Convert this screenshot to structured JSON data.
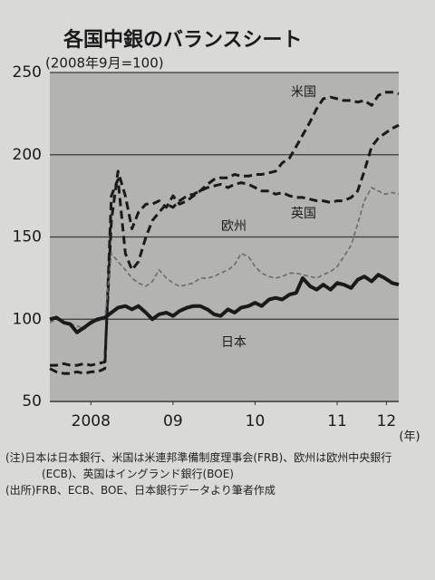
{
  "chart_data": {
    "type": "line",
    "title": "各国中銀のバランスシート",
    "subtitle": "(2008年9月=100)",
    "x_unit": "(年)",
    "x": [
      2008.0,
      2008.08,
      2008.17,
      2008.25,
      2008.33,
      2008.42,
      2008.5,
      2008.58,
      2008.67,
      2008.75,
      2008.83,
      2008.92,
      2009.0,
      2009.08,
      2009.17,
      2009.25,
      2009.33,
      2009.42,
      2009.5,
      2009.58,
      2009.67,
      2009.75,
      2009.83,
      2009.92,
      2010.0,
      2010.08,
      2010.17,
      2010.25,
      2010.33,
      2010.42,
      2010.5,
      2010.58,
      2010.67,
      2010.75,
      2010.83,
      2010.92,
      2011.0,
      2011.08,
      2011.17,
      2011.25,
      2011.33,
      2011.42,
      2011.5,
      2011.58,
      2011.67,
      2011.75,
      2011.83,
      2011.92,
      2012.0,
      2012.08,
      2012.17,
      2012.25
    ],
    "xlim": [
      2008.0,
      2012.25
    ],
    "xticks": [
      {
        "value": 2008.5,
        "label": "2008"
      },
      {
        "value": 2009.5,
        "label": "09"
      },
      {
        "value": 2010.5,
        "label": "10"
      },
      {
        "value": 2011.5,
        "label": "11"
      },
      {
        "value": 2012.1,
        "label": "12"
      }
    ],
    "ylim": [
      50,
      250
    ],
    "yticks": [
      50,
      100,
      150,
      200,
      250
    ],
    "grid": true,
    "series": [
      {
        "name": "米国",
        "color": "#1a1a1a",
        "dash": "9,5",
        "width": 3,
        "values": [
          72,
          72,
          73,
          72,
          72,
          73,
          72,
          73,
          74,
          160,
          190,
          175,
          155,
          165,
          170,
          170,
          172,
          168,
          175,
          170,
          172,
          175,
          178,
          182,
          185,
          186,
          186,
          188,
          187,
          187,
          188,
          188,
          189,
          190,
          195,
          198,
          205,
          212,
          220,
          228,
          234,
          235,
          234,
          233,
          233,
          232,
          233,
          230,
          236,
          238,
          238,
          237
        ]
      },
      {
        "name": "英国",
        "color": "#1a1a1a",
        "dash": "9,5",
        "width": 3,
        "values": [
          70,
          68,
          67,
          67,
          68,
          67,
          68,
          68,
          70,
          175,
          185,
          140,
          130,
          135,
          150,
          160,
          165,
          170,
          168,
          172,
          175,
          176,
          178,
          180,
          181,
          182,
          180,
          182,
          183,
          182,
          180,
          178,
          178,
          176,
          177,
          175,
          174,
          174,
          173,
          172,
          172,
          171,
          172,
          172,
          174,
          178,
          190,
          205,
          210,
          213,
          216,
          218
        ]
      },
      {
        "name": "欧州",
        "color": "#6a6a6a",
        "dash": "5,3",
        "width": 1.6,
        "values": [
          98,
          100,
          98,
          97,
          96,
          94,
          97,
          99,
          100,
          140,
          135,
          130,
          125,
          122,
          120,
          123,
          130,
          125,
          122,
          120,
          121,
          122,
          125,
          125,
          126,
          128,
          130,
          133,
          140,
          138,
          132,
          128,
          126,
          125,
          126,
          128,
          128,
          127,
          126,
          125,
          127,
          129,
          132,
          138,
          145,
          158,
          172,
          180,
          178,
          176,
          177,
          176
        ]
      },
      {
        "name": "日本",
        "color": "#1a1a1a",
        "dash": "none",
        "width": 4,
        "values": [
          100,
          101,
          98,
          97,
          92,
          95,
          98,
          100,
          101,
          104,
          107,
          108,
          106,
          108,
          104,
          100,
          103,
          104,
          102,
          105,
          107,
          108,
          108,
          106,
          103,
          102,
          106,
          104,
          107,
          108,
          110,
          108,
          112,
          113,
          112,
          115,
          116,
          125,
          120,
          118,
          121,
          118,
          122,
          121,
          119,
          124,
          126,
          123,
          127,
          125,
          122,
          121
        ]
      }
    ],
    "notes": [
      "(注)日本は日本銀行、米国は米連邦準備制度理事会(FRB)、欧州は欧州中央銀行(ECB)、英国はイングランド銀行(BOE)",
      "(出所)FRB、ECB、BOE、日本銀行データより筆者作成"
    ]
  }
}
